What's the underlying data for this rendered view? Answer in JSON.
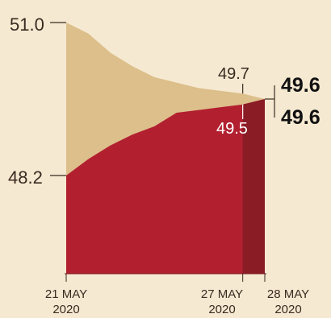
{
  "chart_data": {
    "type": "area",
    "title": "",
    "xlabel": "",
    "ylabel": "",
    "ylim": [
      45.9,
      51.2
    ],
    "x_ticks": [
      {
        "line1": "21 MAY",
        "line2": "2020"
      },
      {
        "line1": "27 MAY",
        "line2": "2020"
      },
      {
        "line1": "28 MAY",
        "line2": "2020"
      }
    ],
    "series": [
      {
        "color": "#dcbf8a",
        "values": [
          51.0,
          50.8,
          50.45,
          50.2,
          50.0,
          49.9,
          49.8,
          49.75,
          49.7,
          49.6
        ]
      },
      {
        "color": "#b22030",
        "values": [
          48.2,
          48.5,
          48.75,
          48.95,
          49.1,
          49.35,
          49.4,
          49.45,
          49.5,
          49.6
        ]
      }
    ],
    "highlight_band": {
      "from_index": 8,
      "to_index": 9,
      "color": "#8a1c26"
    },
    "labels": {
      "start_top": "51.0",
      "start_bottom": "48.2",
      "mid_top": "49.7",
      "mid_bottom": "49.5",
      "end_top": "49.6",
      "end_bottom": "49.6"
    }
  }
}
